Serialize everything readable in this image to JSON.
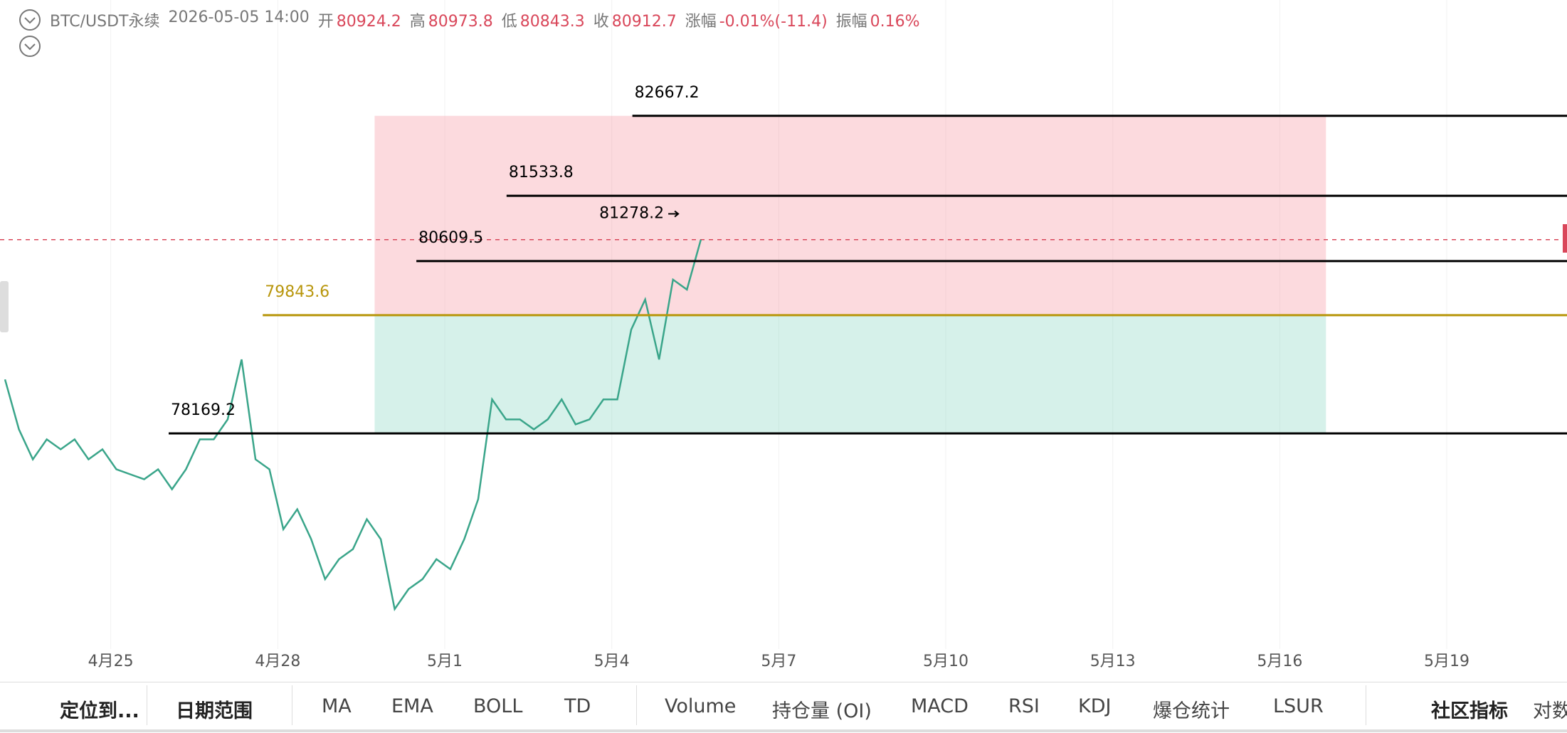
{
  "header": {
    "symbol": "BTC/USDT永续",
    "time": "2026-05-05 14:00",
    "fields": [
      {
        "label": "开",
        "value": "80924.2"
      },
      {
        "label": "高",
        "value": "80973.8"
      },
      {
        "label": "低",
        "value": "80843.3"
      },
      {
        "label": "收",
        "value": "80912.7"
      },
      {
        "label": "涨幅",
        "value": "-0.01%(-11.4)"
      },
      {
        "label": "振幅",
        "value": "0.16%"
      }
    ]
  },
  "chart_data": {
    "type": "line",
    "color": "#3aa58a",
    "x": [
      -1.9,
      -1.65,
      -1.4,
      -1.15,
      -0.9,
      -0.65,
      -0.4,
      -0.15,
      0.1,
      0.35,
      0.6,
      0.85,
      1.1,
      1.35,
      1.6,
      1.85,
      2.1,
      2.35,
      2.6,
      2.85,
      3.1,
      3.35,
      3.6,
      3.85,
      4.1,
      4.35,
      4.6,
      4.85,
      5.1,
      5.35,
      5.6,
      5.85,
      6.1,
      6.35,
      6.6,
      6.85,
      7.1,
      7.35,
      7.6,
      7.85,
      8.1,
      8.35,
      8.6,
      8.85,
      9.1,
      9.35,
      9.6,
      9.85,
      10.1,
      10.35,
      10.6
    ],
    "values": [
      78933,
      78226,
      77801,
      78084,
      77943,
      78084,
      77801,
      77943,
      77660,
      77589,
      77519,
      77660,
      77377,
      77660,
      78084,
      78084,
      78367,
      79216,
      77801,
      77660,
      76811,
      77094,
      76670,
      76104,
      76387,
      76529,
      76953,
      76670,
      75680,
      75963,
      76104,
      76387,
      76246,
      76670,
      77236,
      78650,
      78367,
      78367,
      78226,
      78367,
      78650,
      78296,
      78367,
      78650,
      78650,
      79640,
      80065,
      79216,
      80347,
      80206,
      80912.7
    ],
    "xlim": [
      -1.99,
      26.16
    ],
    "ylim": [
      75114,
      84308
    ],
    "grid": true,
    "xticks": [
      {
        "value": 0,
        "label": "4月25"
      },
      {
        "value": 3,
        "label": "4月28"
      },
      {
        "value": 6,
        "label": "5月1"
      },
      {
        "value": 9,
        "label": "5月4"
      },
      {
        "value": 12,
        "label": "5月7"
      },
      {
        "value": 15,
        "label": "5月10"
      },
      {
        "value": 18,
        "label": "5月13"
      },
      {
        "value": 21,
        "label": "5月16"
      },
      {
        "value": 24,
        "label": "5月19"
      }
    ],
    "levels": [
      {
        "value": 82667.2,
        "x_start": 9.37,
        "color": "#000000"
      },
      {
        "value": 81533.8,
        "x_start": 7.11,
        "color": "#000000"
      },
      {
        "value": 80609.5,
        "x_start": 5.49,
        "color": "#000000"
      },
      {
        "value": 79843.6,
        "x_start": 2.73,
        "color": "#b8960c"
      },
      {
        "value": 78169.2,
        "x_start": 1.04,
        "color": "#000000"
      }
    ],
    "box": {
      "x_start": 4.74,
      "x_end": 21.83,
      "top": 82667.2,
      "entry": 79843.6,
      "bottom": 78169.2
    },
    "last_price": 80912.7,
    "high_marker": {
      "value": 81278.2,
      "x": 10.45
    }
  },
  "toolbar": [
    "定位到...",
    "日期范围",
    "MA",
    "EMA",
    "BOLL",
    "TD",
    "Volume",
    "持仓量 (OI)",
    "MACD",
    "RSI",
    "KDJ",
    "爆仓统计",
    "LSUR",
    "社区指标",
    "对数"
  ]
}
